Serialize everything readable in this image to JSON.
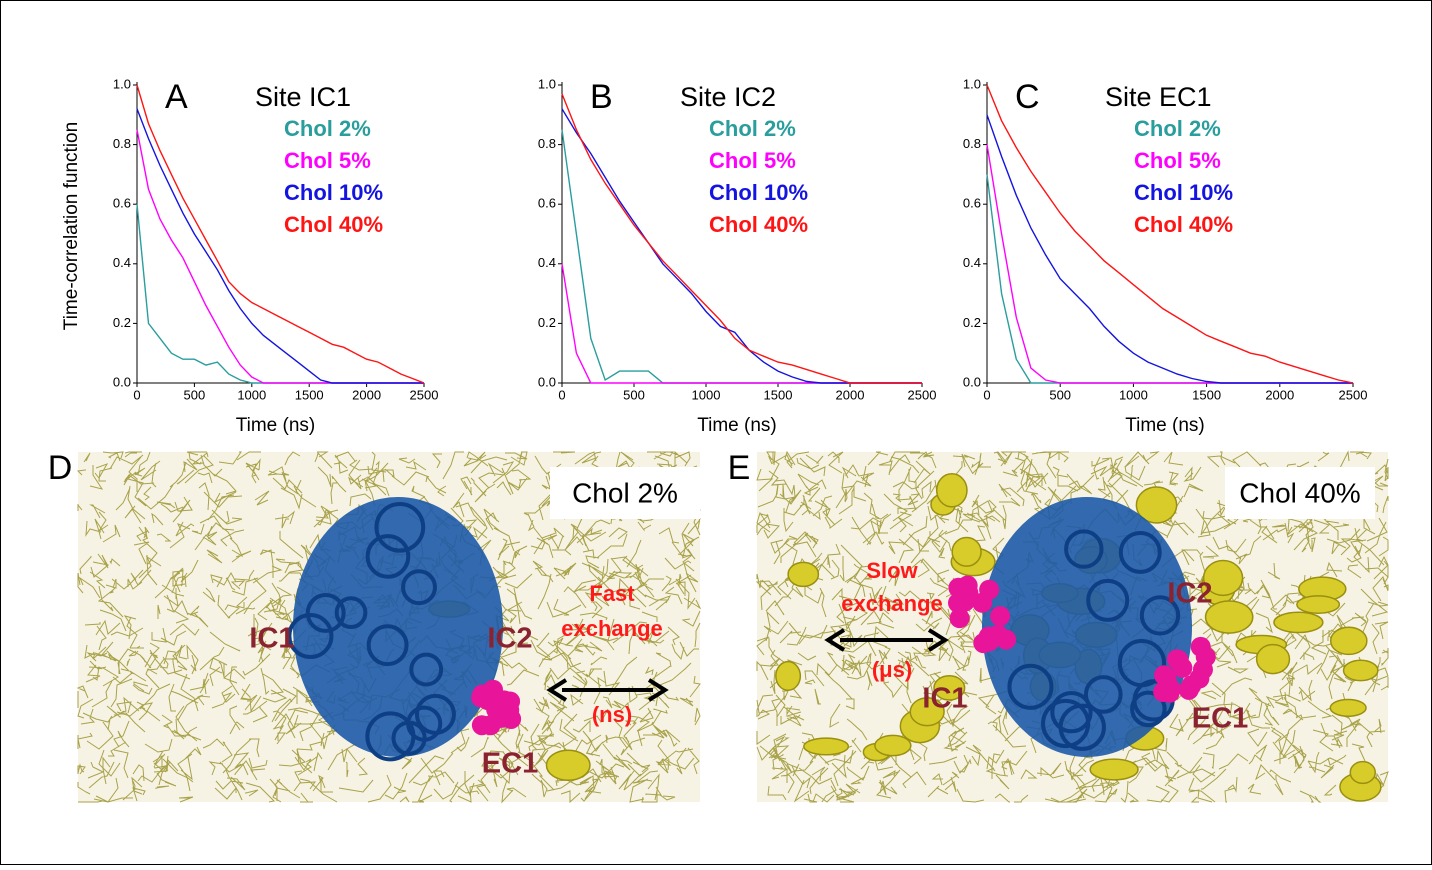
{
  "chart_data": [
    {
      "type": "line",
      "panel": "A",
      "title": "Site IC1",
      "xlabel": "Time (ns)",
      "ylabel": "Time-correlation function",
      "x": [
        0,
        100,
        200,
        300,
        400,
        500,
        600,
        700,
        800,
        900,
        1000,
        1100,
        1200,
        1300,
        1400,
        1500,
        1600,
        1700,
        1800,
        1900,
        2000,
        2100,
        2200,
        2300,
        2400,
        2500
      ],
      "xlim": [
        0,
        2500
      ],
      "xticks": [
        0,
        500,
        1000,
        1500,
        2000,
        2500
      ],
      "ylim": [
        0,
        1
      ],
      "yticks": [
        {
          "value": 0,
          "label": "0.0"
        },
        {
          "value": 0.2,
          "label": "0.2"
        },
        {
          "value": 0.4,
          "label": "0.4"
        },
        {
          "value": 0.6,
          "label": "0.6"
        },
        {
          "value": 0.8,
          "label": "0.8"
        },
        {
          "value": 1,
          "label": "1.0"
        }
      ],
      "series": [
        {
          "name": "Chol 2%",
          "color": "#2a9d9d",
          "values": [
            0.6,
            0.2,
            0.15,
            0.1,
            0.08,
            0.08,
            0.06,
            0.07,
            0.03,
            0.01,
            0,
            0,
            0,
            0,
            0,
            0,
            0,
            0,
            0,
            0,
            0,
            0,
            0,
            0,
            0,
            0
          ]
        },
        {
          "name": "Chol 5%",
          "color": "#ff00ff",
          "values": [
            0.85,
            0.65,
            0.55,
            0.48,
            0.42,
            0.34,
            0.26,
            0.19,
            0.12,
            0.06,
            0.02,
            0,
            0,
            0,
            0,
            0,
            0,
            0,
            0,
            0,
            0,
            0,
            0,
            0,
            0,
            0
          ]
        },
        {
          "name": "Chol 10%",
          "color": "#1414e0",
          "values": [
            0.92,
            0.82,
            0.73,
            0.65,
            0.57,
            0.5,
            0.44,
            0.38,
            0.31,
            0.25,
            0.2,
            0.16,
            0.13,
            0.1,
            0.07,
            0.04,
            0.01,
            0,
            0,
            0,
            0,
            0,
            0,
            0,
            0,
            0
          ]
        },
        {
          "name": "Chol 40%",
          "color": "#ff1414",
          "values": [
            1,
            0.87,
            0.78,
            0.7,
            0.62,
            0.55,
            0.48,
            0.41,
            0.34,
            0.3,
            0.27,
            0.25,
            0.23,
            0.21,
            0.19,
            0.17,
            0.15,
            0.13,
            0.12,
            0.1,
            0.08,
            0.07,
            0.05,
            0.03,
            0.015,
            0
          ]
        }
      ]
    },
    {
      "type": "line",
      "panel": "B",
      "title": "Site IC2",
      "xlabel": "Time (ns)",
      "x": [
        0,
        100,
        200,
        300,
        400,
        500,
        600,
        700,
        800,
        900,
        1000,
        1100,
        1200,
        1300,
        1400,
        1500,
        1600,
        1700,
        1800,
        1900,
        2000,
        2100,
        2200,
        2300,
        2400,
        2500
      ],
      "xlim": [
        0,
        2500
      ],
      "xticks": [
        0,
        500,
        1000,
        1500,
        2000,
        2500
      ],
      "ylim": [
        0,
        1
      ],
      "yticks": [
        {
          "value": 0,
          "label": "0.0"
        },
        {
          "value": 0.2,
          "label": "0.2"
        },
        {
          "value": 0.4,
          "label": "0.4"
        },
        {
          "value": 0.6,
          "label": "0.6"
        },
        {
          "value": 0.8,
          "label": "0.8"
        },
        {
          "value": 1,
          "label": "1.0"
        }
      ],
      "series": [
        {
          "name": "Chol 2%",
          "color": "#2a9d9d",
          "values": [
            0.85,
            0.5,
            0.15,
            0.01,
            0.04,
            0.04,
            0.04,
            0,
            0,
            0,
            0,
            0,
            0,
            0,
            0,
            0,
            0,
            0,
            0,
            0,
            0,
            0,
            0,
            0,
            0,
            0
          ]
        },
        {
          "name": "Chol 5%",
          "color": "#ff00ff",
          "values": [
            0.4,
            0.1,
            0,
            0,
            0,
            0,
            0,
            0,
            0,
            0,
            0,
            0,
            0,
            0,
            0,
            0,
            0,
            0,
            0,
            0,
            0,
            0,
            0,
            0,
            0,
            0
          ]
        },
        {
          "name": "Chol 10%",
          "color": "#1414e0",
          "values": [
            0.92,
            0.84,
            0.77,
            0.69,
            0.61,
            0.54,
            0.47,
            0.4,
            0.35,
            0.3,
            0.24,
            0.19,
            0.17,
            0.11,
            0.07,
            0.04,
            0.02,
            0.005,
            0,
            0,
            0,
            0,
            0,
            0,
            0,
            0
          ]
        },
        {
          "name": "Chol 40%",
          "color": "#ff1414",
          "values": [
            0.97,
            0.85,
            0.75,
            0.67,
            0.6,
            0.53,
            0.47,
            0.41,
            0.36,
            0.31,
            0.26,
            0.21,
            0.15,
            0.11,
            0.09,
            0.07,
            0.06,
            0.045,
            0.03,
            0.015,
            0,
            0,
            0,
            0,
            0,
            0
          ]
        }
      ]
    },
    {
      "type": "line",
      "panel": "C",
      "title": "Site EC1",
      "xlabel": "Time (ns)",
      "x": [
        0,
        100,
        200,
        300,
        400,
        500,
        600,
        700,
        800,
        900,
        1000,
        1100,
        1200,
        1300,
        1400,
        1500,
        1600,
        1700,
        1800,
        1900,
        2000,
        2100,
        2200,
        2300,
        2400,
        2500
      ],
      "xlim": [
        0,
        2500
      ],
      "xticks": [
        0,
        500,
        1000,
        1500,
        2000,
        2500
      ],
      "ylim": [
        0,
        1
      ],
      "yticks": [
        {
          "value": 0,
          "label": "0.0"
        },
        {
          "value": 0.2,
          "label": "0.2"
        },
        {
          "value": 0.4,
          "label": "0.4"
        },
        {
          "value": 0.6,
          "label": "0.6"
        },
        {
          "value": 0.8,
          "label": "0.8"
        },
        {
          "value": 1,
          "label": "1.0"
        }
      ],
      "series": [
        {
          "name": "Chol 2%",
          "color": "#2a9d9d",
          "values": [
            0.7,
            0.3,
            0.08,
            0,
            0,
            0,
            0,
            0,
            0,
            0,
            0,
            0,
            0,
            0,
            0,
            0,
            0,
            0,
            0,
            0,
            0,
            0,
            0,
            0,
            0,
            0
          ]
        },
        {
          "name": "Chol 5%",
          "color": "#ff00ff",
          "values": [
            0.8,
            0.5,
            0.22,
            0.05,
            0.01,
            0,
            0,
            0,
            0,
            0,
            0,
            0,
            0,
            0,
            0,
            0,
            0,
            0,
            0,
            0,
            0,
            0,
            0,
            0,
            0,
            0
          ]
        },
        {
          "name": "Chol 10%",
          "color": "#1414e0",
          "values": [
            0.9,
            0.76,
            0.63,
            0.52,
            0.43,
            0.35,
            0.3,
            0.25,
            0.19,
            0.14,
            0.1,
            0.07,
            0.05,
            0.03,
            0.015,
            0.005,
            0,
            0,
            0,
            0,
            0,
            0,
            0,
            0,
            0,
            0
          ]
        },
        {
          "name": "Chol 40%",
          "color": "#ff1414",
          "values": [
            1,
            0.88,
            0.79,
            0.71,
            0.64,
            0.57,
            0.51,
            0.46,
            0.41,
            0.37,
            0.33,
            0.29,
            0.25,
            0.22,
            0.19,
            0.16,
            0.14,
            0.12,
            0.1,
            0.09,
            0.07,
            0.055,
            0.04,
            0.025,
            0.01,
            0
          ]
        }
      ]
    }
  ],
  "panels": [
    {
      "letter": "D",
      "label": "Chol 2%",
      "sites": [
        "IC1",
        "IC2",
        "EC1"
      ],
      "exchange": [
        "Fast",
        "exchange",
        "(ns)"
      ]
    },
    {
      "letter": "E",
      "label": "Chol 40%",
      "sites": [
        "IC1",
        "IC2",
        "EC1"
      ],
      "exchange": [
        "Slow",
        "exchange",
        "(μs)"
      ]
    }
  ]
}
